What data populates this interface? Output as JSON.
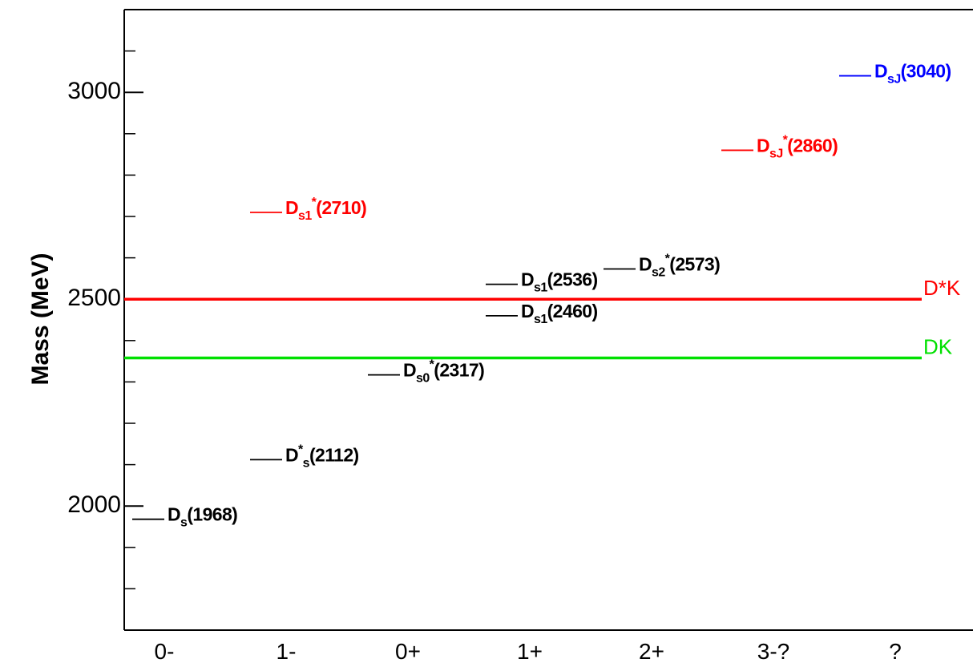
{
  "chart_data": {
    "type": "level",
    "ylabel": "Mass (MeV)",
    "categories": [
      "0-",
      "1-",
      "0+",
      "1+",
      "2+",
      "3-?",
      "?"
    ],
    "ylim": [
      1700,
      3200
    ],
    "yticks": [
      2000,
      2500,
      3000
    ],
    "yminorticks": [
      1800,
      1900,
      2100,
      2200,
      2300,
      2400,
      2600,
      2700,
      2800,
      2900,
      3100
    ],
    "states": [
      {
        "x": "0-",
        "value": 1968,
        "color": "#000000",
        "label": [
          {
            "t": "D"
          },
          {
            "t": "s",
            "pos": "sub"
          },
          {
            "t": "(1968)"
          }
        ]
      },
      {
        "x": "1-",
        "value": 2112,
        "color": "#000000",
        "label": [
          {
            "t": "D"
          },
          {
            "t": "*",
            "pos": "sup"
          },
          {
            "t": "s",
            "pos": "sub"
          },
          {
            "t": "(2112)"
          }
        ]
      },
      {
        "x": "0+",
        "value": 2317,
        "color": "#000000",
        "label": [
          {
            "t": "D"
          },
          {
            "t": "s0",
            "pos": "sub"
          },
          {
            "t": "*",
            "pos": "sup"
          },
          {
            "t": "(2317)"
          }
        ]
      },
      {
        "x": "1+",
        "value": 2460,
        "color": "#000000",
        "label": [
          {
            "t": "D"
          },
          {
            "t": "s1",
            "pos": "sub"
          },
          {
            "t": "(2460)"
          }
        ]
      },
      {
        "x": "1+",
        "value": 2536,
        "color": "#000000",
        "label": [
          {
            "t": "D"
          },
          {
            "t": "s1",
            "pos": "sub"
          },
          {
            "t": "(2536)"
          }
        ]
      },
      {
        "x": "2+",
        "value": 2573,
        "color": "#000000",
        "label": [
          {
            "t": "D"
          },
          {
            "t": "s2",
            "pos": "sub"
          },
          {
            "t": "*",
            "pos": "sup"
          },
          {
            "t": "(2573)"
          }
        ]
      },
      {
        "x": "1-",
        "value": 2710,
        "color": "#ff0000",
        "label": [
          {
            "t": "D"
          },
          {
            "t": "s1",
            "pos": "sub"
          },
          {
            "t": "*",
            "pos": "sup"
          },
          {
            "t": "(2710)"
          }
        ]
      },
      {
        "x": "3-?",
        "value": 2860,
        "color": "#ff0000",
        "label": [
          {
            "t": "D"
          },
          {
            "t": "sJ",
            "pos": "sub"
          },
          {
            "t": "*",
            "pos": "sup"
          },
          {
            "t": "(2860)"
          }
        ]
      },
      {
        "x": "?",
        "value": 3040,
        "color": "#0000ff",
        "label": [
          {
            "t": "D"
          },
          {
            "t": "sJ",
            "pos": "sub"
          },
          {
            "t": "(3040)"
          }
        ]
      }
    ],
    "thresholds": [
      {
        "name": "D*K",
        "value": 2500,
        "color": "#ff0000"
      },
      {
        "name": "DK",
        "value": 2358,
        "color": "#00e000"
      }
    ]
  }
}
